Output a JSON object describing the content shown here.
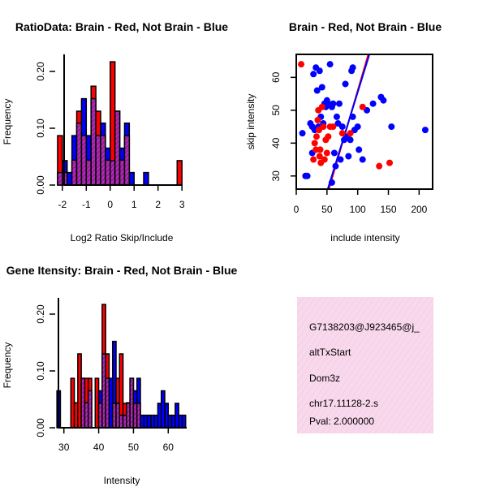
{
  "colors": {
    "brain": "#ff0000",
    "not_brain": "#0000ff",
    "overlap": "#9a1fa0",
    "hatch": "#d040d0",
    "info_bg": "#f8d8ec",
    "pval": "#cc0000"
  },
  "chart_data": [
    {
      "id": "ratio_hist",
      "type": "bar",
      "title": "RatioData: Brain - Red, Not Brain - Blue",
      "xlabel": "Log2 Ratio Skip/Include",
      "ylabel": "Frequency",
      "xlim": [
        -2.3,
        3.3
      ],
      "ylim": [
        0,
        0.23
      ],
      "xticks": [
        -2,
        -1,
        0,
        1,
        2,
        3
      ],
      "yticks": [
        0.0,
        0.1,
        0.2
      ],
      "ytick_labels": [
        "0.00",
        "0.10",
        "0.20"
      ],
      "bin_starts": [
        -2.2,
        -2.0,
        -1.8,
        -1.6,
        -1.4,
        -1.2,
        -1.0,
        -0.8,
        -0.6,
        -0.4,
        -0.2,
        0.0,
        0.2,
        0.4,
        0.6,
        0.8,
        1.0,
        1.2,
        1.4,
        1.6,
        1.8,
        2.0,
        2.2,
        2.4,
        2.6,
        2.8,
        3.0
      ],
      "bin_width": 0.2,
      "series": [
        {
          "name": "Brain",
          "values": [
            0.087,
            0.022,
            0,
            0.044,
            0.13,
            0.087,
            0.044,
            0.174,
            0.13,
            0.087,
            0.044,
            0.217,
            0.13,
            0.044,
            0.087,
            0,
            0,
            0,
            0,
            0,
            0,
            0,
            0,
            0,
            0,
            0.043,
            0
          ]
        },
        {
          "name": "Not Brain",
          "values": [
            0.022,
            0.043,
            0.022,
            0.087,
            0.109,
            0.152,
            0.087,
            0.152,
            0.087,
            0.109,
            0.065,
            0.043,
            0.13,
            0.065,
            0.109,
            0.022,
            0,
            0,
            0.022,
            0,
            0,
            0,
            0,
            0,
            0,
            0,
            0
          ]
        }
      ]
    },
    {
      "id": "scatter",
      "type": "scatter",
      "title": "Brain - Red, Not Brain - Blue",
      "xlabel": "include intensity",
      "ylabel": "skip intensity",
      "xlim": [
        0,
        222
      ],
      "ylim": [
        26,
        67
      ],
      "xticks": [
        0,
        50,
        100,
        150,
        200
      ],
      "yticks": [
        30,
        40,
        50,
        60
      ],
      "series": [
        {
          "name": "Brain",
          "points": [
            [
              8,
              64
            ],
            [
              28,
              35
            ],
            [
              30,
              40
            ],
            [
              32,
              38
            ],
            [
              33,
              42
            ],
            [
              35,
              47
            ],
            [
              36,
              50
            ],
            [
              37,
              44
            ],
            [
              38,
              36
            ],
            [
              39,
              38
            ],
            [
              40,
              34
            ],
            [
              42,
              51
            ],
            [
              44,
              45
            ],
            [
              46,
              35
            ],
            [
              48,
              41
            ],
            [
              50,
              37
            ],
            [
              52,
              42
            ],
            [
              55,
              45
            ],
            [
              60,
              45
            ],
            [
              75,
              43
            ],
            [
              88,
              43
            ],
            [
              108,
              51
            ],
            [
              135,
              33
            ],
            [
              152,
              34
            ]
          ]
        },
        {
          "name": "Not Brain",
          "points": [
            [
              10,
              43
            ],
            [
              15,
              30
            ],
            [
              18,
              30
            ],
            [
              23,
              46
            ],
            [
              26,
              37
            ],
            [
              26,
              45
            ],
            [
              28,
              61
            ],
            [
              30,
              44
            ],
            [
              32,
              63
            ],
            [
              34,
              56
            ],
            [
              36,
              45
            ],
            [
              38,
              62
            ],
            [
              40,
              48
            ],
            [
              42,
              57
            ],
            [
              44,
              46
            ],
            [
              46,
              52
            ],
            [
              48,
              51
            ],
            [
              50,
              53
            ],
            [
              52,
              52
            ],
            [
              55,
              64
            ],
            [
              58,
              51
            ],
            [
              60,
              52
            ],
            [
              62,
              37
            ],
            [
              64,
              33
            ],
            [
              66,
              48
            ],
            [
              68,
              46
            ],
            [
              70,
              52
            ],
            [
              72,
              35
            ],
            [
              75,
              45
            ],
            [
              78,
              41
            ],
            [
              82,
              42
            ],
            [
              85,
              36
            ],
            [
              88,
              41
            ],
            [
              90,
              62
            ],
            [
              92,
              48
            ],
            [
              95,
              44
            ],
            [
              100,
              45
            ],
            [
              102,
              38
            ],
            [
              108,
              35
            ],
            [
              115,
              50
            ],
            [
              125,
              52
            ],
            [
              138,
              54
            ],
            [
              142,
              53
            ],
            [
              155,
              45
            ],
            [
              92,
              63
            ],
            [
              210,
              44
            ],
            [
              58,
              28
            ],
            [
              80,
              58
            ]
          ]
        }
      ],
      "lines": [
        {
          "name": "Brain fit",
          "from": [
            50,
            24
          ],
          "to": [
            122,
            70
          ]
        },
        {
          "name": "Not Brain fit",
          "from": [
            48,
            24
          ],
          "to": [
            124,
            70
          ]
        }
      ]
    },
    {
      "id": "intensity_hist",
      "type": "bar",
      "title": "Gene Itensity: Brain - Red, Not Brain - Blue",
      "xlabel": "Intensity",
      "ylabel": "Frequency",
      "xlim": [
        27.5,
        66
      ],
      "ylim": [
        0,
        0.23
      ],
      "xticks": [
        30,
        40,
        50,
        60
      ],
      "yticks": [
        0.0,
        0.1,
        0.2
      ],
      "ytick_labels": [
        "0.00",
        "0.10",
        "0.20"
      ],
      "bin_starts": [
        28,
        29,
        30,
        31,
        32,
        33,
        34,
        35,
        36,
        37,
        38,
        39,
        40,
        41,
        42,
        43,
        44,
        45,
        46,
        47,
        48,
        49,
        50,
        51,
        52,
        53,
        54,
        55,
        56,
        57,
        58,
        59,
        60,
        61,
        62,
        63,
        64
      ],
      "bin_width": 1,
      "series": [
        {
          "name": "Brain",
          "values": [
            0,
            0,
            0,
            0,
            0.087,
            0.044,
            0.13,
            0.087,
            0.087,
            0.087,
            0,
            0.087,
            0.043,
            0.217,
            0.13,
            0,
            0.043,
            0.087,
            0.13,
            0.043,
            0.044,
            0.087,
            0.043,
            0.043,
            0,
            0,
            0,
            0,
            0,
            0,
            0,
            0,
            0,
            0,
            0,
            0,
            0
          ]
        },
        {
          "name": "Not Brain",
          "values": [
            0.065,
            0,
            0,
            0,
            0,
            0,
            0,
            0.087,
            0.044,
            0.065,
            0,
            0,
            0.065,
            0.13,
            0.087,
            0.087,
            0.152,
            0.043,
            0.022,
            0.022,
            0.043,
            0.087,
            0.065,
            0.087,
            0.022,
            0.022,
            0.022,
            0.022,
            0.022,
            0.043,
            0.065,
            0.043,
            0.022,
            0.022,
            0.043,
            0.022,
            0.022
          ]
        }
      ]
    }
  ],
  "info": {
    "lines": [
      "G7138203@J923465@j_",
      "altTxStart",
      "Dom3z",
      "chr17.11128-2.s"
    ],
    "pval": "Pval: 2.000000"
  }
}
